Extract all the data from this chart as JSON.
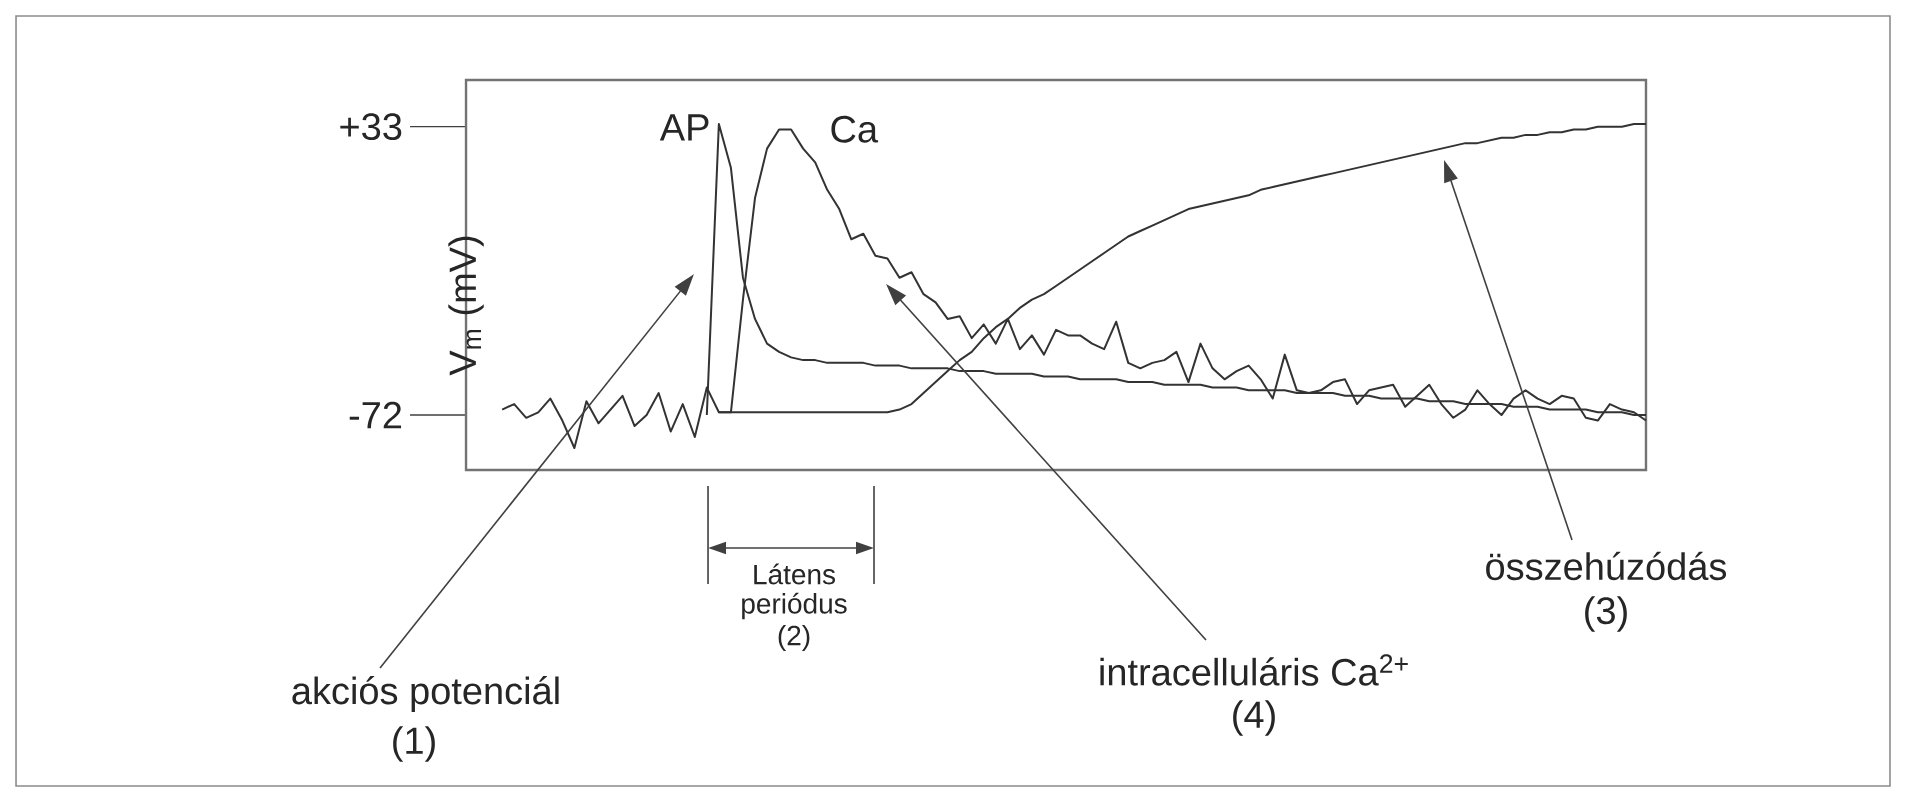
{
  "chart_data": {
    "type": "line",
    "ylabel": "V$_{m}$ (mV)",
    "categories": [
      null,
      null,
      null,
      null,
      null,
      null,
      null,
      null,
      null,
      null,
      null,
      null,
      null,
      null,
      null,
      null,
      null,
      null,
      null,
      null,
      null,
      null,
      null,
      null,
      null,
      null,
      null,
      null,
      null,
      null,
      null,
      null,
      null,
      null,
      null,
      null,
      null,
      null,
      null,
      null,
      null,
      null,
      null,
      null,
      null,
      null,
      null,
      null,
      null,
      null,
      null,
      null,
      null,
      null,
      null,
      null,
      null,
      null,
      null,
      null,
      null,
      null,
      null,
      null,
      null,
      null,
      null,
      null,
      null,
      null,
      null,
      null,
      null,
      null,
      null,
      null,
      null,
      null,
      null,
      null,
      null,
      null,
      null,
      null,
      null,
      null,
      null,
      null,
      null,
      null,
      null,
      null,
      null,
      null,
      null,
      null,
      null,
      null,
      null
    ],
    "ylim": [
      -92,
      50
    ],
    "yticks": [
      {
        "value": 33,
        "label": "+33"
      },
      {
        "value": -72,
        "label": "-72"
      }
    ],
    "series": [
      {
        "name": "AP",
        "color": "#333333",
        "values": [
          null,
          null,
          null,
          null,
          null,
          null,
          null,
          null,
          null,
          null,
          null,
          null,
          null,
          null,
          null,
          null,
          null,
          null,
          null,
          null,
          -72,
          34,
          18,
          -22,
          -37,
          -46,
          -49,
          -51,
          -52,
          -52,
          -53,
          -53,
          -53,
          -53,
          -54,
          -54,
          -54,
          -55,
          -55,
          -55,
          -55,
          -56,
          -56,
          -56,
          -57,
          -57,
          -57,
          -57,
          -58,
          -58,
          -58,
          -59,
          -59,
          -59,
          -59,
          -60,
          -60,
          -60,
          -61,
          -61,
          -61,
          -61,
          -62,
          -62,
          -62,
          -63,
          -63,
          -63,
          -63,
          -64,
          -64,
          -64,
          -64,
          -65,
          -65,
          -65,
          -66,
          -66,
          -66,
          -66,
          -67,
          -67,
          -67,
          -68,
          -68,
          -68,
          -68,
          -69,
          -69,
          -69,
          -70,
          -70,
          -70,
          -70,
          -71,
          -71,
          -71,
          -72,
          -72
        ]
      },
      {
        "name": "Ca",
        "color": "#333333",
        "values": [
          null,
          null,
          null,
          -70,
          -68,
          -73,
          -71,
          -66,
          -74,
          -84,
          -67,
          -75,
          -70,
          -65,
          -76,
          -72,
          -64,
          -78,
          -68,
          -80,
          -62,
          -71,
          -71,
          -30,
          7,
          25,
          32,
          32,
          25,
          20,
          10,
          3,
          -8,
          -6,
          -14,
          -15,
          -22,
          -20,
          -28,
          -31,
          -37,
          -36,
          -44,
          -39,
          -46,
          -37,
          -48,
          -43,
          -50,
          -41,
          -43,
          -43,
          -46,
          -48,
          -38,
          -53,
          -55,
          -53,
          -52,
          -49,
          -60,
          -46,
          -55,
          -59,
          -56,
          -54,
          -59,
          -66,
          -50,
          -63,
          -64,
          -63,
          -60,
          -59,
          -68,
          -63,
          -62,
          -61,
          -69,
          -65,
          -61,
          -68,
          -73,
          -70,
          -63,
          -68,
          -72,
          -66,
          -63,
          -66,
          -68,
          -65,
          -66,
          -73,
          -74,
          -68,
          -70,
          -71,
          -74
        ]
      },
      {
        "color": "#333333",
        "values": [
          null,
          null,
          null,
          null,
          null,
          null,
          null,
          null,
          null,
          null,
          null,
          null,
          null,
          null,
          null,
          null,
          null,
          null,
          null,
          null,
          null,
          -71,
          -71,
          -71,
          -71,
          -71,
          -71,
          -71,
          -71,
          -71,
          -71,
          -71,
          -71,
          -71,
          -71,
          -71,
          -70,
          -68,
          -64,
          -60,
          -56,
          -52,
          -49,
          -44,
          -40,
          -37,
          -33,
          -30,
          -28,
          -25,
          -22,
          -19,
          -16,
          -13,
          -10,
          -7,
          -5,
          -3,
          -1,
          1,
          3,
          4,
          5,
          6,
          7,
          8,
          10,
          11,
          12,
          13,
          14,
          15,
          16,
          17,
          18,
          19,
          20,
          21,
          22,
          23,
          24,
          25,
          26,
          27,
          27,
          28,
          29,
          29,
          30,
          30,
          31,
          31,
          32,
          32,
          33,
          33,
          33,
          34,
          34
        ]
      }
    ],
    "annotations": [
      "akciós potenciál",
      "(1)",
      "Látens",
      "periódus",
      "(2)",
      "intracelluláris Ca$^{2+}$",
      "(4)",
      "összehúzódás",
      "(3)"
    ]
  }
}
